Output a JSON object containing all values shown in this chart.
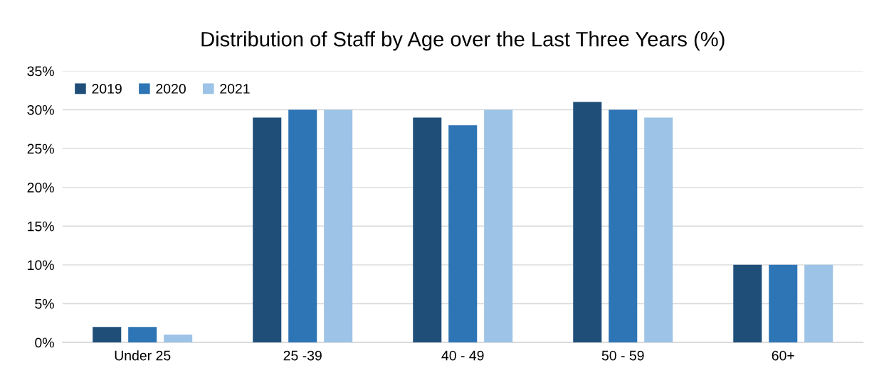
{
  "chart_data": {
    "type": "bar",
    "title": "Distribution of Staff by Age over the Last Three Years (%)",
    "categories": [
      "Under 25",
      "25 -39",
      "40 - 49",
      "50 - 59",
      "60+"
    ],
    "series": [
      {
        "name": "2019",
        "color": "#1f4e79",
        "values": [
          2,
          29,
          29,
          31,
          10
        ]
      },
      {
        "name": "2020",
        "color": "#2e75b6",
        "values": [
          2,
          30,
          28,
          30,
          10
        ]
      },
      {
        "name": "2021",
        "color": "#9dc3e6",
        "values": [
          1,
          30,
          30,
          29,
          10
        ]
      }
    ],
    "ylim": [
      0,
      35
    ],
    "yticks": [
      {
        "value": 0,
        "label": "0%"
      },
      {
        "value": 5,
        "label": "5%"
      },
      {
        "value": 10,
        "label": "10%"
      },
      {
        "value": 15,
        "label": "15%"
      },
      {
        "value": 20,
        "label": "20%"
      },
      {
        "value": 25,
        "label": "25%"
      },
      {
        "value": 30,
        "label": "30%"
      },
      {
        "value": 35,
        "label": "35%"
      }
    ],
    "grid": "y",
    "legend": "top left"
  }
}
